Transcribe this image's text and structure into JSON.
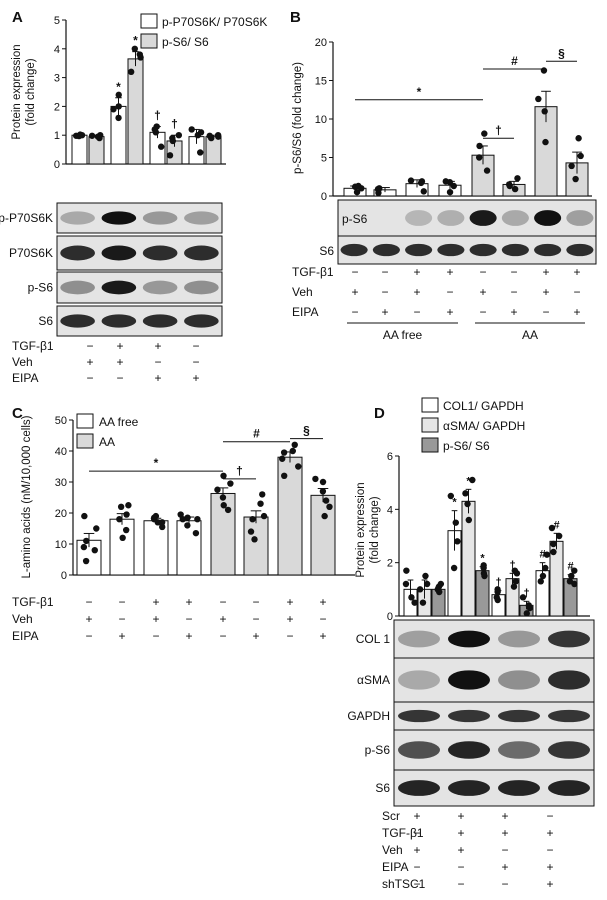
{
  "panels": {
    "A": "A",
    "B": "B",
    "C": "C",
    "D": "D"
  },
  "chart_data": [
    {
      "id": "A",
      "type": "bar",
      "ylabel": "Protein expression (fold change)",
      "ylabel_lines": [
        "Protein expression",
        "(fold change)"
      ],
      "ylim": [
        0,
        5
      ],
      "yticks": [
        0,
        1,
        2,
        3,
        4,
        5
      ],
      "series": [
        {
          "name": "p-P70S6K/ P70S6K",
          "color": "#ffffff",
          "values": [
            1.0,
            2.0,
            1.1,
            0.95
          ],
          "errors": [
            0.05,
            0.3,
            0.2,
            0.25
          ],
          "points": [
            [
              0.98,
              1.0,
              1.02,
              0.97
            ],
            [
              1.6,
              2.4,
              2.0,
              1.9
            ],
            [
              0.6,
              1.1,
              1.3,
              1.2
            ],
            [
              0.4,
              1.2,
              1.0,
              1.1
            ]
          ],
          "annotations": [
            "",
            "*",
            "†",
            ""
          ]
        },
        {
          "name": "p-S6/ S6",
          "color": "#d9d9d9",
          "values": [
            0.95,
            3.65,
            0.8,
            0.95
          ],
          "errors": [
            0.05,
            0.25,
            0.2,
            0.05
          ],
          "points": [
            [
              0.9,
              1.0,
              0.95,
              0.98
            ],
            [
              3.2,
              4.0,
              3.7,
              3.8
            ],
            [
              0.3,
              1.0,
              0.9,
              0.8
            ],
            [
              0.9,
              1.0,
              0.95,
              0.98
            ]
          ],
          "annotations": [
            "",
            "*",
            "†",
            ""
          ]
        }
      ],
      "blots": [
        "p-P70S6K",
        "P70S6K",
        "p-S6",
        "S6"
      ],
      "conditions": [
        {
          "label": "TGF-β1",
          "marks": [
            "−",
            "+",
            "+",
            "−"
          ]
        },
        {
          "label": "Veh",
          "marks": [
            "+",
            "+",
            "−",
            "−"
          ]
        },
        {
          "label": "EIPA",
          "marks": [
            "−",
            "−",
            "+",
            "+"
          ]
        }
      ]
    },
    {
      "id": "B",
      "type": "bar",
      "ylabel": "p-S6/S6 (fold change)",
      "ylim": [
        0,
        20
      ],
      "yticks": [
        0,
        5,
        10,
        15,
        20
      ],
      "values": [
        1.0,
        0.8,
        1.6,
        1.4,
        5.3,
        1.5,
        11.6,
        4.3
      ],
      "errors": [
        0.3,
        0.3,
        0.5,
        0.5,
        1.2,
        0.4,
        2.0,
        1.4
      ],
      "points": [
        [
          0.5,
          1.2,
          1.0,
          1.3
        ],
        [
          0.4,
          1.0,
          0.8,
          0.9
        ],
        [
          0.6,
          2.0,
          1.9,
          1.7
        ],
        [
          0.5,
          1.8,
          1.3,
          1.9
        ],
        [
          3.3,
          5.0,
          6.5,
          8.1
        ],
        [
          0.9,
          1.5,
          2.3,
          1.3
        ],
        [
          7.0,
          11.0,
          12.6,
          16.3
        ],
        [
          2.2,
          3.9,
          5.2,
          7.5
        ]
      ],
      "bar_colors": [
        "#ffffff",
        "#ffffff",
        "#ffffff",
        "#ffffff",
        "#d9d9d9",
        "#d9d9d9",
        "#d9d9d9",
        "#d9d9d9"
      ],
      "sig": [
        {
          "from": 0,
          "to": 4,
          "y": 12.5,
          "label": "*"
        },
        {
          "from": 4,
          "to": 5,
          "y": 7.5,
          "label": "†"
        },
        {
          "from": 4,
          "to": 6,
          "y": 16.5,
          "label": "#"
        },
        {
          "from": 6,
          "to": 7,
          "y": 17.5,
          "label": "§"
        }
      ],
      "blots": [
        "p-S6",
        "S6"
      ],
      "conditions": [
        {
          "label": "TGF-β1",
          "marks": [
            "−",
            "−",
            "+",
            "+",
            "−",
            "−",
            "+",
            "+"
          ]
        },
        {
          "label": "Veh",
          "marks": [
            "+",
            "−",
            "+",
            "−",
            "+",
            "−",
            "+",
            "−"
          ]
        },
        {
          "label": "EIPA",
          "marks": [
            "−",
            "+",
            "−",
            "+",
            "−",
            "+",
            "−",
            "+"
          ]
        }
      ],
      "groups": [
        {
          "label": "AA free",
          "from": 0,
          "to": 3
        },
        {
          "label": "AA",
          "from": 4,
          "to": 7
        }
      ]
    },
    {
      "id": "C",
      "type": "bar",
      "ylabel": "L-amino acids (nM/10,000 cells)",
      "ylim": [
        0,
        50
      ],
      "yticks": [
        0,
        10,
        20,
        30,
        40,
        50
      ],
      "legend": [
        {
          "name": "AA free",
          "color": "#ffffff"
        },
        {
          "name": "AA",
          "color": "#d9d9d9"
        }
      ],
      "values": [
        11.2,
        18.0,
        17.5,
        17.5,
        26.3,
        18.7,
        38.0,
        25.7
      ],
      "errors": [
        2.2,
        1.8,
        0.8,
        1.2,
        1.8,
        2.0,
        1.7,
        2.2
      ],
      "points": [
        [
          4.5,
          8.0,
          9.0,
          11.0,
          15.0,
          19.0
        ],
        [
          12.0,
          14.5,
          18.0,
          19.5,
          22.0,
          22.5
        ],
        [
          15.5,
          17.0,
          18.0,
          18.5,
          17.0,
          19.0
        ],
        [
          13.5,
          16.0,
          18.0,
          18.5,
          19.5,
          18.0
        ],
        [
          21.0,
          22.5,
          25.0,
          27.5,
          29.5,
          32.0
        ],
        [
          11.5,
          14.0,
          18.0,
          19.0,
          23.0,
          26.0
        ],
        [
          32.0,
          35.0,
          37.5,
          39.5,
          40.0,
          42.0
        ],
        [
          19.0,
          22.0,
          24.0,
          27.0,
          30.0,
          31.0
        ]
      ],
      "bar_colors": [
        "#ffffff",
        "#ffffff",
        "#ffffff",
        "#ffffff",
        "#d9d9d9",
        "#d9d9d9",
        "#d9d9d9",
        "#d9d9d9"
      ],
      "sig": [
        {
          "from": 0,
          "to": 4,
          "y": 33.5,
          "label": "*"
        },
        {
          "from": 4,
          "to": 5,
          "y": 31.0,
          "label": "†"
        },
        {
          "from": 4,
          "to": 6,
          "y": 43.0,
          "label": "#"
        },
        {
          "from": 6,
          "to": 7,
          "y": 44.0,
          "label": "§"
        }
      ],
      "conditions": [
        {
          "label": "TGF-β1",
          "marks": [
            "−",
            "−",
            "+",
            "+",
            "−",
            "−",
            "+",
            "+"
          ]
        },
        {
          "label": "Veh",
          "marks": [
            "+",
            "−",
            "+",
            "−",
            "+",
            "−",
            "+",
            "−"
          ]
        },
        {
          "label": "EIPA",
          "marks": [
            "−",
            "+",
            "−",
            "+",
            "−",
            "+",
            "−",
            "+"
          ]
        }
      ]
    },
    {
      "id": "D",
      "type": "bar",
      "ylabel": "Protein expression (fold change)",
      "ylabel_lines": [
        "Protein expression",
        "(fold change)"
      ],
      "ylim": [
        0,
        6
      ],
      "yticks": [
        0,
        2,
        4,
        6
      ],
      "series": [
        {
          "name": "COL1/ GAPDH",
          "color": "#ffffff",
          "values": [
            1.0,
            3.2,
            0.8,
            1.7
          ],
          "errors": [
            0.35,
            0.75,
            0.15,
            0.3
          ],
          "points": [
            [
              0.5,
              0.7,
              1.2,
              1.7
            ],
            [
              1.8,
              2.8,
              3.5,
              4.5
            ],
            [
              0.6,
              0.7,
              0.9,
              1.0
            ],
            [
              1.3,
              1.5,
              1.8,
              2.3
            ]
          ],
          "annotations": [
            "",
            "*",
            "†",
            "#"
          ]
        },
        {
          "name": "αSMA/ GAPDH",
          "color": "#e6e6e6",
          "values": [
            1.0,
            4.3,
            1.4,
            2.8
          ],
          "errors": [
            0.35,
            0.45,
            0.2,
            0.3
          ],
          "points": [
            [
              0.5,
              1.0,
              1.2,
              1.5
            ],
            [
              3.6,
              4.2,
              4.6,
              5.1
            ],
            [
              1.1,
              1.3,
              1.6,
              1.7
            ],
            [
              2.4,
              2.7,
              3.0,
              3.3
            ]
          ],
          "annotations": [
            "",
            "*",
            "†",
            "#"
          ]
        },
        {
          "name": "p-S6/ S6",
          "color": "#999999",
          "values": [
            1.0,
            1.7,
            0.4,
            1.4
          ],
          "errors": [
            0.1,
            0.15,
            0.15,
            0.15
          ],
          "points": [
            [
              0.9,
              1.0,
              1.1,
              1.2
            ],
            [
              1.5,
              1.6,
              1.8,
              1.9
            ],
            [
              0.1,
              0.3,
              0.4,
              0.7
            ],
            [
              1.2,
              1.3,
              1.5,
              1.7
            ]
          ],
          "annotations": [
            "",
            "*",
            "†",
            "#"
          ]
        }
      ],
      "blots": [
        "COL 1",
        "αSMA",
        "GAPDH",
        "p-S6",
        "S6"
      ],
      "conditions": [
        {
          "label": "Scr",
          "marks": [
            "+",
            "+",
            "+",
            "−"
          ]
        },
        {
          "label": "TGF-β1",
          "marks": [
            "−",
            "+",
            "+",
            "+"
          ]
        },
        {
          "label": "Veh",
          "marks": [
            "+",
            "+",
            "−",
            "−"
          ]
        },
        {
          "label": "EIPA",
          "marks": [
            "−",
            "−",
            "+",
            "+"
          ]
        },
        {
          "label": "shTSC1",
          "marks": [
            "−",
            "−",
            "−",
            "+"
          ]
        }
      ]
    }
  ]
}
